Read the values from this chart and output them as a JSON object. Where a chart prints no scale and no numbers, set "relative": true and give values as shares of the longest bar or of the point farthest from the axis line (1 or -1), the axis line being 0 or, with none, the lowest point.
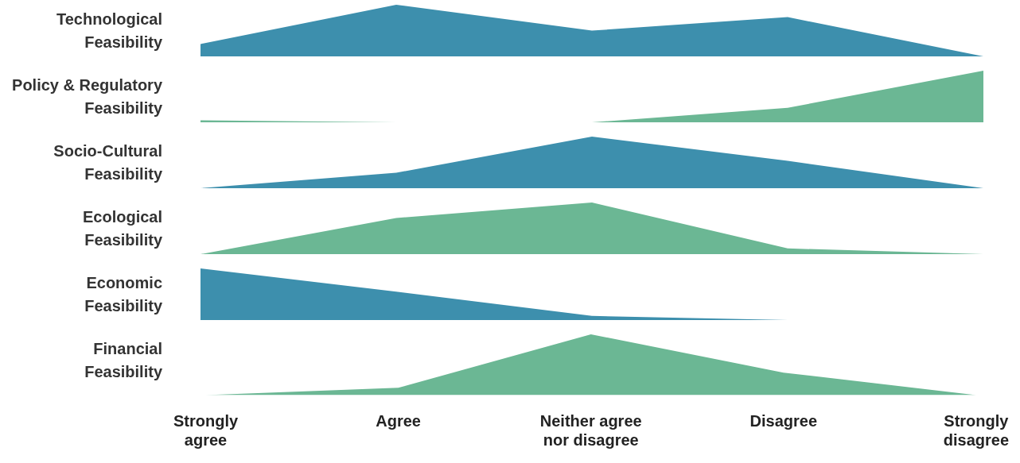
{
  "chart_data": [
    {
      "type": "area",
      "ylabel": "Technological Feasibility",
      "categories": [
        null,
        null,
        null,
        null,
        null
      ],
      "values": [
        0.24,
        1,
        0.5,
        0.76,
        0
      ],
      "color": "#3d8fad",
      "relative": true
    },
    {
      "type": "area",
      "ylabel": "Policy & Regulatory Feasibility",
      "categories": [
        null,
        null,
        null,
        null,
        null
      ],
      "values": [
        0.04,
        0,
        0,
        0.28,
        1
      ],
      "color": "#6bb794",
      "relative": true
    },
    {
      "type": "area",
      "ylabel": "Socio-Cultural Feasibility",
      "categories": [
        null,
        null,
        null,
        null,
        null
      ],
      "values": [
        0,
        0.3,
        1,
        0.53,
        0
      ],
      "color": "#3d8fad",
      "relative": true
    },
    {
      "type": "area",
      "ylabel": "Ecological Feasibility",
      "categories": [
        null,
        null,
        null,
        null,
        null
      ],
      "values": [
        0,
        0.7,
        1,
        0.11,
        0
      ],
      "color": "#6bb794",
      "relative": true
    },
    {
      "type": "area",
      "ylabel": "Economic Feasibility",
      "categories": [
        null,
        null,
        null,
        null,
        null
      ],
      "values": [
        1,
        0.55,
        0.08,
        0,
        0
      ],
      "color": "#3d8fad",
      "relative": true
    },
    {
      "type": "area",
      "ylabel": "Financial Feasibility",
      "categories": [
        "Strongly agree",
        "Agree",
        "Neither agree nor disagree",
        "Disagree",
        "Strongly disagree"
      ],
      "values": [
        0,
        0.12,
        1,
        0.37,
        0
      ],
      "color": "#6bb794",
      "relative": true
    }
  ]
}
